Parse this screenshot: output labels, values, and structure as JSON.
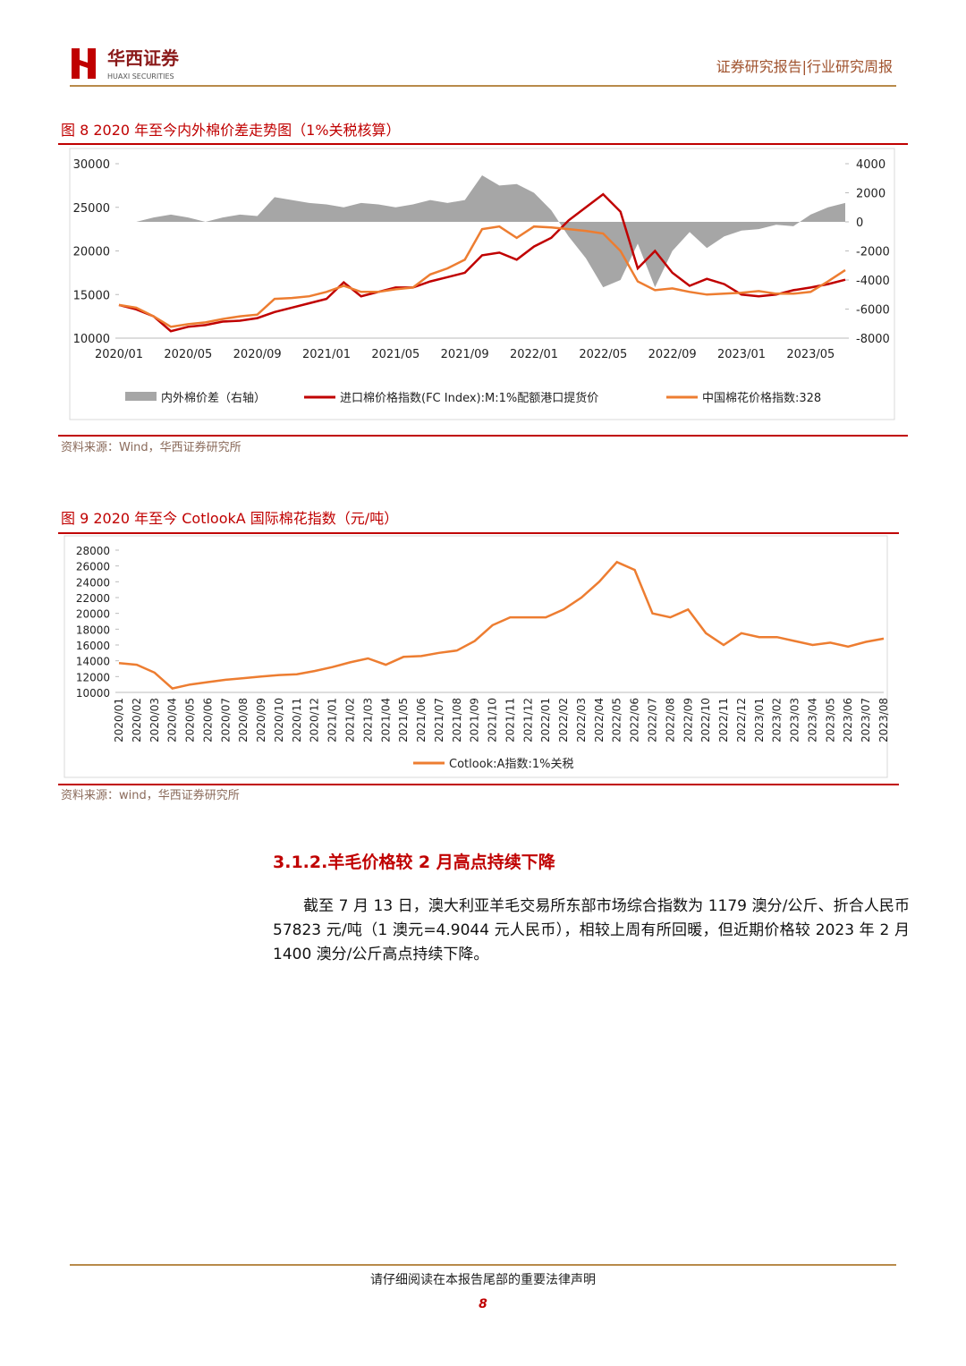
{
  "header": {
    "brand": "华西证券",
    "brand_en": "HUAXI SECURITIES",
    "report_type": "证券研究报告|行业研究周报"
  },
  "figures": [
    {
      "title": "图 8 2020 年至今内外棉价差走势图（1%关税核算）",
      "source": "资料来源：Wind，华西证券研究所",
      "chart_data": {
        "type": "line",
        "categories": [
          "2020/01",
          null,
          null,
          null,
          "2020/05",
          null,
          null,
          null,
          "2020/09",
          null,
          null,
          null,
          "2021/01",
          null,
          null,
          null,
          "2021/05",
          null,
          null,
          null,
          "2021/09",
          null,
          null,
          null,
          "2022/01",
          null,
          null,
          null,
          "2022/05",
          null,
          null,
          null,
          "2022/09",
          null,
          null,
          null,
          "2023/01",
          null,
          null,
          null,
          "2023/05",
          null,
          null
        ],
        "ylim": [
          10000,
          30000
        ],
        "yticks": [
          10000,
          15000,
          20000,
          25000,
          30000
        ],
        "y2lim": [
          -8000,
          4000
        ],
        "y2ticks": [
          -8000,
          -6000,
          -4000,
          -2000,
          0,
          2000,
          4000
        ],
        "series": [
          {
            "name": "内外棉价差（右轴）",
            "type": "area",
            "axis": "y2",
            "color": "#a6a6a6",
            "values": [
              0,
              0,
              300,
              500,
              300,
              0,
              300,
              500,
              400,
              1700,
              1500,
              1300,
              1200,
              1000,
              1300,
              1200,
              1000,
              1200,
              1500,
              1300,
              1500,
              3200,
              2500,
              2600,
              2000,
              800,
              -1000,
              -2500,
              -4500,
              -4000,
              -1500,
              -4500,
              -2000,
              -700,
              -1800,
              -1000,
              -600,
              -500,
              -200,
              -300,
              500,
              1000,
              1300
            ]
          },
          {
            "name": "进口棉价格指数(FC Index):M:1%配额港口提货价",
            "type": "line",
            "axis": "y",
            "color": "#c00000",
            "values": [
              13800,
              13300,
              12500,
              10800,
              11300,
              11500,
              11900,
              12000,
              12300,
              13000,
              13500,
              14000,
              14500,
              16400,
              14800,
              15300,
              15800,
              15800,
              16500,
              17000,
              17500,
              19500,
              19800,
              19000,
              20500,
              21500,
              23500,
              25000,
              26500,
              24500,
              18000,
              20000,
              17500,
              16000,
              16800,
              16200,
              15000,
              14800,
              15000,
              15500,
              15800,
              16200,
              16700
            ]
          },
          {
            "name": "中国棉花价格指数:328",
            "type": "line",
            "axis": "y",
            "color": "#ed7d31",
            "values": [
              13800,
              13500,
              12500,
              11300,
              11600,
              11800,
              12200,
              12500,
              12700,
              14500,
              14600,
              14800,
              15300,
              16000,
              15300,
              15300,
              15600,
              15800,
              17300,
              18000,
              19000,
              22500,
              22800,
              21500,
              22800,
              22700,
              22500,
              22300,
              22000,
              20000,
              16500,
              15500,
              15700,
              15300,
              15000,
              15100,
              15200,
              15400,
              15100,
              15100,
              15300,
              16500,
              17800
            ]
          }
        ]
      }
    },
    {
      "title": "图 9 2020 年至今 CotlookA 国际棉花指数（元/吨）",
      "source": "资料来源：wind，华西证券研究所",
      "chart_data": {
        "type": "line",
        "categories": [
          "2020/01",
          "2020/02",
          "2020/03",
          "2020/04",
          "2020/05",
          "2020/06",
          "2020/07",
          "2020/08",
          "2020/09",
          "2020/10",
          "2020/11",
          "2020/12",
          "2021/01",
          "2021/02",
          "2021/03",
          "2021/04",
          "2021/05",
          "2021/06",
          "2021/07",
          "2021/08",
          "2021/09",
          "2021/10",
          "2021/11",
          "2021/12",
          "2022/01",
          "2022/02",
          "2022/03",
          "2022/04",
          "2022/05",
          "2022/06",
          "2022/07",
          "2022/08",
          "2022/09",
          "2022/10",
          "2022/11",
          "2022/12",
          "2023/01",
          "2023/02",
          "2023/03",
          "2023/04",
          "2023/05",
          "2023/06",
          "2023/07",
          "2023/08"
        ],
        "ylim": [
          10000,
          28000
        ],
        "yticks": [
          10000,
          12000,
          14000,
          16000,
          18000,
          20000,
          22000,
          24000,
          26000,
          28000
        ],
        "series": [
          {
            "name": "Cotlook:A指数:1%关税",
            "type": "line",
            "color": "#ed7d31",
            "values": [
              13700,
              13500,
              12500,
              10500,
              11000,
              11300,
              11600,
              11800,
              12000,
              12200,
              12300,
              12700,
              13200,
              13800,
              14300,
              13500,
              14500,
              14600,
              15000,
              15300,
              16500,
              18500,
              19500,
              19500,
              19500,
              20500,
              22000,
              24000,
              26500,
              25500,
              20000,
              19500,
              20500,
              17500,
              16000,
              17500,
              17000,
              17000,
              16500,
              16000,
              16300,
              15800,
              16400,
              16800
            ]
          }
        ]
      }
    }
  ],
  "section": {
    "heading": "3.1.2.羊毛价格较 2 月高点持续下降",
    "paragraph": "截至 7 月 13 日，澳大利亚羊毛交易所东部市场综合指数为 1179 澳分/公斤、折合人民币 57823 元/吨（1 澳元=4.9044 元人民币），相较上周有所回暖，但近期价格较 2023 年 2 月 1400 澳分/公斤高点持续下降。"
  },
  "footer": {
    "disclaimer": "请仔细阅读在本报告尾部的重要法律声明",
    "page": "8"
  }
}
